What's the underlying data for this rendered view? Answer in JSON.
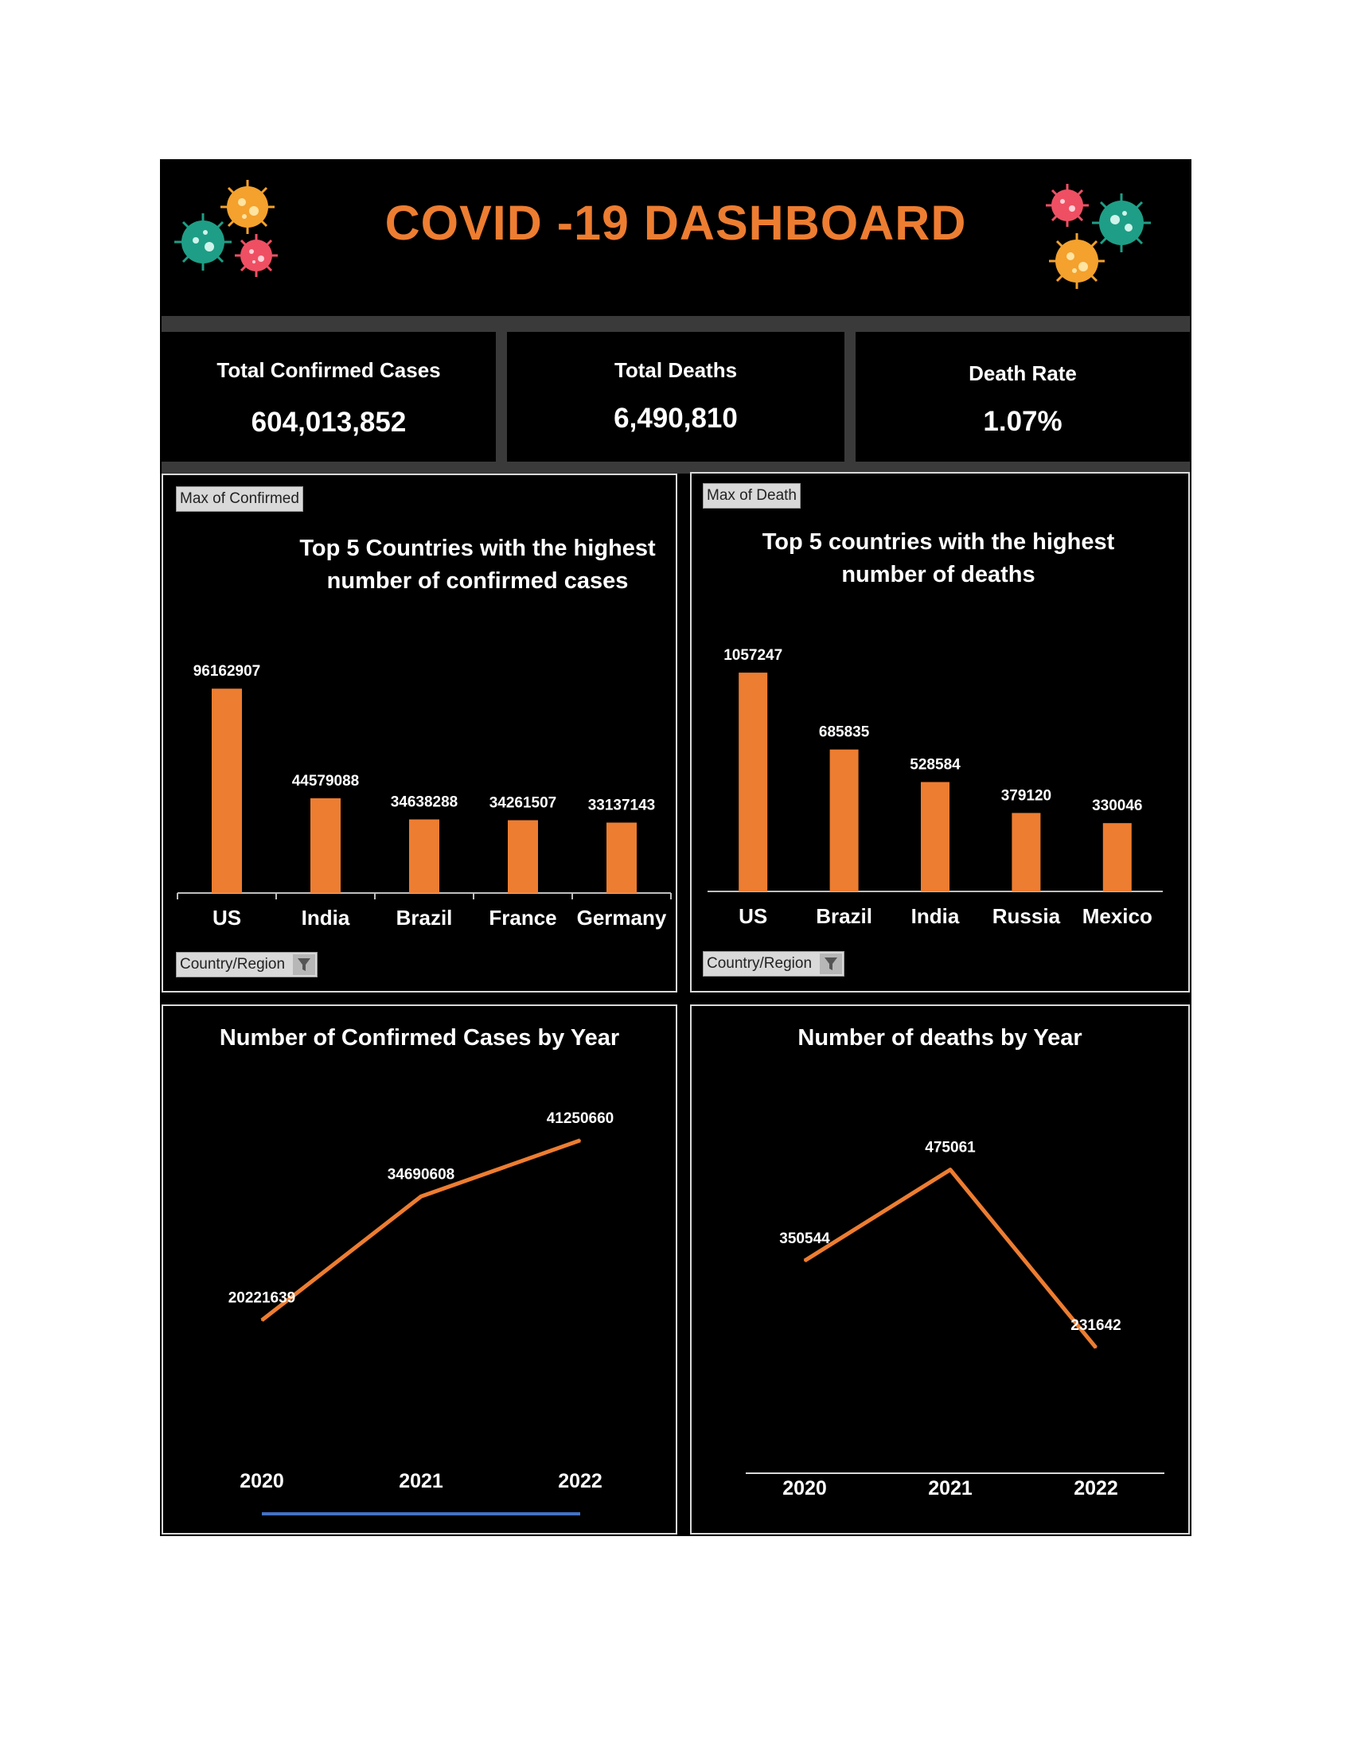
{
  "dashboard": {
    "title": "COVID -19 DASHBOARD"
  },
  "kpis": [
    {
      "label": "Total Confirmed Cases",
      "value": "604,013,852"
    },
    {
      "label": "Total Deaths",
      "value": "6,490,810"
    },
    {
      "label": "Death Rate",
      "value": "1.07%"
    }
  ],
  "colors": {
    "accent": "#ED7D31",
    "background": "#000000",
    "band": "#3a3a3a",
    "virus_orange": "#F4A12D",
    "virus_teal": "#1E9E86",
    "virus_pink": "#EF4F63",
    "slicer_line": "#4472C4"
  },
  "icons": [
    "virus-icon",
    "filter-icon"
  ],
  "panels": {
    "confirmed_bar": {
      "field_tag": "Max of Confirmed",
      "filter_tag": "Country/Region"
    },
    "deaths_bar": {
      "field_tag": "Max of Death",
      "filter_tag": "Country/Region"
    }
  },
  "chart_data": [
    {
      "type": "bar",
      "title": "Top 5 Countries with the highest number of confirmed cases",
      "categories": [
        "US",
        "India",
        "Brazil",
        "France",
        "Germany"
      ],
      "values": [
        96162907,
        44579088,
        34638288,
        34261507,
        33137143
      ],
      "xlabel": "",
      "ylabel": "",
      "ylim": [
        0,
        100000000
      ],
      "grid": false,
      "data_labels": true
    },
    {
      "type": "bar",
      "title": "Top 5 countries with the highest number of deaths",
      "categories": [
        "US",
        "Brazil",
        "India",
        "Russia",
        "Mexico"
      ],
      "values": [
        1057247,
        685835,
        528584,
        379120,
        330046
      ],
      "xlabel": "",
      "ylabel": "",
      "ylim": [
        0,
        1100000
      ],
      "grid": false,
      "data_labels": true
    },
    {
      "type": "line",
      "title": "Number of Confirmed Cases by Year",
      "x": [
        "2020",
        "2021",
        "2022"
      ],
      "values": [
        20221639,
        34690608,
        41250660
      ],
      "xlabel": "",
      "ylabel": "",
      "ylim": [
        0,
        47000000
      ],
      "grid": false,
      "data_labels": true
    },
    {
      "type": "line",
      "title": "Number of deaths by Year",
      "x": [
        "2020",
        "2021",
        "2022"
      ],
      "values": [
        350544,
        475061,
        231642
      ],
      "xlabel": "",
      "ylabel": "",
      "ylim": [
        0,
        700000
      ],
      "grid": false,
      "data_labels": true
    }
  ]
}
